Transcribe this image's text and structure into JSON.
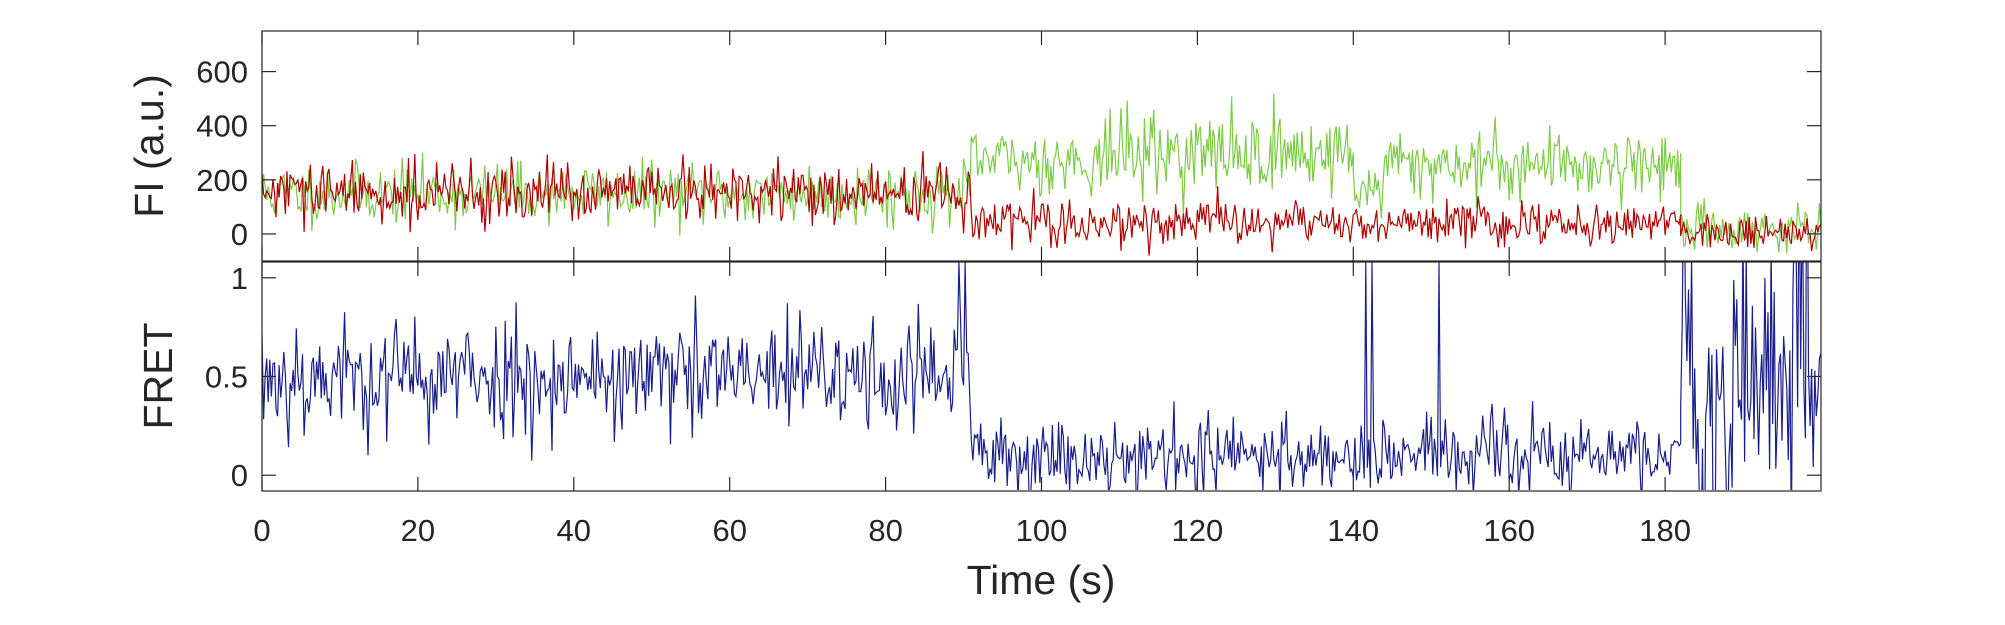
{
  "chart_data": [
    {
      "type": "line",
      "panel": "top",
      "ylabel": "FI (a.u.)",
      "xlabel": "",
      "xlim": [
        0,
        200
      ],
      "ylim": [
        -100,
        750
      ],
      "yticks": [
        0,
        200,
        400,
        600
      ],
      "grid": false,
      "series_colors": {
        "donor": "#7ccc44",
        "acceptor": "#b00000"
      },
      "segments": {
        "donor": [
          {
            "x": [
              0,
              91
            ],
            "mean": 150,
            "noise": 55
          },
          {
            "x": [
              91,
              108
            ],
            "mean": 270,
            "noise": 60
          },
          {
            "x": [
              108,
              140
            ],
            "mean": 300,
            "noise": 75
          },
          {
            "x": [
              140,
              144
            ],
            "mean": 170,
            "noise": 55
          },
          {
            "x": [
              144,
              182
            ],
            "mean": 260,
            "noise": 65
          },
          {
            "x": [
              182,
              200
            ],
            "mean": 20,
            "noise": 40
          }
        ],
        "acceptor": [
          {
            "x": [
              0,
              91
            ],
            "mean": 150,
            "noise": 55
          },
          {
            "x": [
              91,
              182
            ],
            "mean": 40,
            "noise": 40
          },
          {
            "x": [
              182,
              200
            ],
            "mean": 10,
            "noise": 35
          }
        ]
      }
    },
    {
      "type": "line",
      "panel": "bottom",
      "ylabel": "FRET",
      "xlabel": "Time (s)",
      "xlim": [
        0,
        200
      ],
      "ylim": [
        -0.08,
        1.08
      ],
      "yticks": [
        0,
        0.5,
        1
      ],
      "xticks": [
        0,
        20,
        40,
        60,
        80,
        100,
        120,
        140,
        160,
        180
      ],
      "grid": false,
      "series_colors": {
        "fret": "#1a1f8c"
      },
      "segments": {
        "fret": [
          {
            "x": [
              0,
              91
            ],
            "mean": 0.5,
            "noise": 0.15
          },
          {
            "x": [
              91,
              182
            ],
            "mean": 0.1,
            "noise": 0.1
          },
          {
            "x": [
              182,
              200
            ],
            "mean": 0.5,
            "noise": 0.55
          }
        ]
      },
      "spikes": [
        {
          "x": 89.5,
          "y": 1.08
        },
        {
          "x": 90.3,
          "y": 1.08
        },
        {
          "x": 141.5,
          "y": 1.08
        },
        {
          "x": 142.3,
          "y": 1.08
        },
        {
          "x": 151,
          "y": 1.08
        }
      ]
    }
  ],
  "tick_text": {
    "top_y": [
      "0",
      "200",
      "400",
      "600"
    ],
    "bottom_y": [
      "0",
      "0.5",
      "1"
    ],
    "x": [
      "0",
      "20",
      "40",
      "60",
      "80",
      "100",
      "120",
      "140",
      "160",
      "180"
    ]
  },
  "labels": {
    "top_y": "FI (a.u.)",
    "bottom_y": "FRET",
    "x": "Time (s)"
  }
}
